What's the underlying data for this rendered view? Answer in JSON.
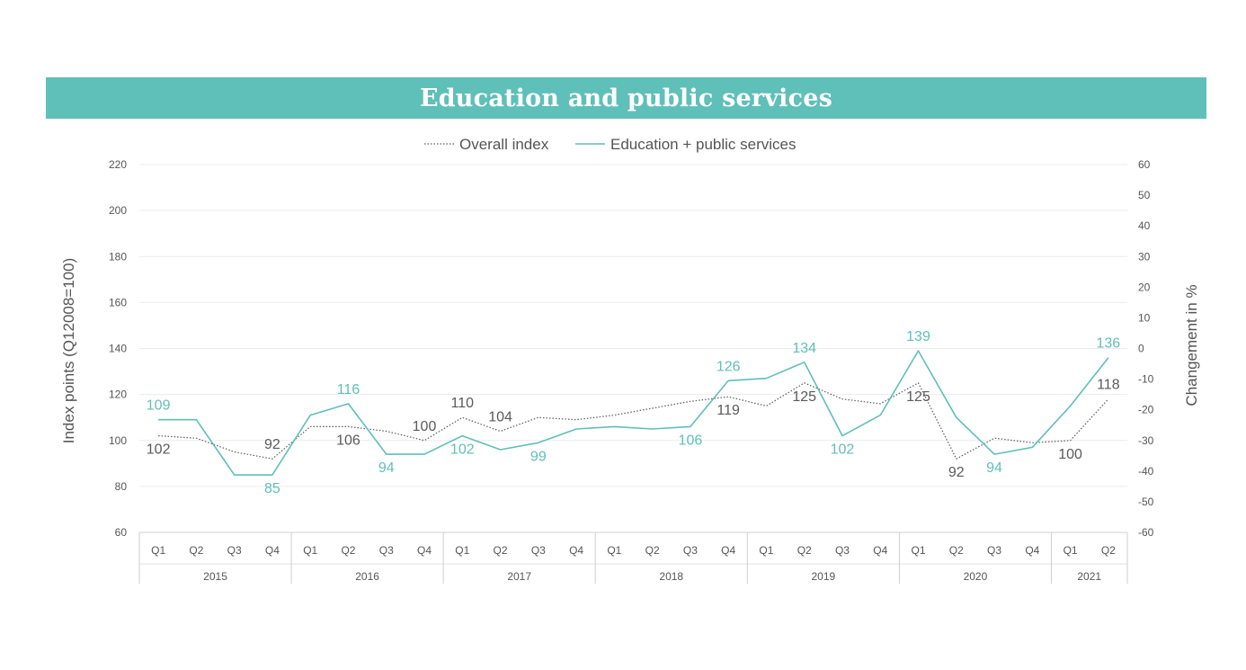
{
  "title": "Education and public services",
  "colors": {
    "banner": "#5fbfb9",
    "education": "#5fbfb9",
    "overall": "#5a5a5a",
    "axis_text": "#555555",
    "grid": "#ececec"
  },
  "chart_data": {
    "type": "line",
    "title": "Education and public services",
    "legend": {
      "placement": "top-center"
    },
    "ylabel": "Index points (Q12008=100)",
    "y2label": "Changement in %",
    "ylim": [
      60,
      220
    ],
    "yticks": [
      60,
      80,
      100,
      120,
      140,
      160,
      180,
      200,
      220
    ],
    "y2lim": [
      -60,
      60
    ],
    "y2ticks": [
      -60,
      -50,
      -40,
      -30,
      -20,
      -10,
      0,
      10,
      20,
      30,
      40,
      50,
      60
    ],
    "grid": true,
    "quarters": [
      "Q1",
      "Q2",
      "Q3",
      "Q4",
      "Q1",
      "Q2",
      "Q3",
      "Q4",
      "Q1",
      "Q2",
      "Q3",
      "Q4",
      "Q1",
      "Q2",
      "Q3",
      "Q4",
      "Q1",
      "Q2",
      "Q3",
      "Q4",
      "Q1",
      "Q2",
      "Q3",
      "Q4",
      "Q1",
      "Q2"
    ],
    "years": [
      {
        "label": "2015",
        "count": 4
      },
      {
        "label": "2016",
        "count": 4
      },
      {
        "label": "2017",
        "count": 4
      },
      {
        "label": "2018",
        "count": 4
      },
      {
        "label": "2019",
        "count": 4
      },
      {
        "label": "2020",
        "count": 4
      },
      {
        "label": "2021",
        "count": 2
      }
    ],
    "series": [
      {
        "name": "Overall index",
        "style": "dotted",
        "values": [
          102,
          101,
          95,
          92,
          106,
          106,
          104,
          100,
          110,
          104,
          110,
          109,
          111,
          114,
          117,
          119,
          115,
          125,
          118,
          116,
          125,
          92,
          101,
          99,
          100,
          118
        ],
        "labels": [
          {
            "i": 0,
            "text": "102",
            "pos": "below"
          },
          {
            "i": 3,
            "text": "92",
            "pos": "above"
          },
          {
            "i": 5,
            "text": "106",
            "pos": "below"
          },
          {
            "i": 7,
            "text": "100",
            "pos": "above"
          },
          {
            "i": 8,
            "text": "110",
            "pos": "above"
          },
          {
            "i": 9,
            "text": "104",
            "pos": "above"
          },
          {
            "i": 15,
            "text": "119",
            "pos": "below"
          },
          {
            "i": 17,
            "text": "125",
            "pos": "below"
          },
          {
            "i": 20,
            "text": "125",
            "pos": "below"
          },
          {
            "i": 21,
            "text": "92",
            "pos": "below"
          },
          {
            "i": 24,
            "text": "100",
            "pos": "below"
          },
          {
            "i": 25,
            "text": "118",
            "pos": "above"
          }
        ]
      },
      {
        "name": "Education + public services",
        "style": "solid",
        "values": [
          109,
          109,
          85,
          85,
          111,
          116,
          94,
          94,
          102,
          96,
          99,
          105,
          106,
          105,
          106,
          126,
          127,
          134,
          102,
          111,
          139,
          110,
          94,
          97,
          115,
          136
        ],
        "labels": [
          {
            "i": 0,
            "text": "109",
            "pos": "above"
          },
          {
            "i": 3,
            "text": "85",
            "pos": "below"
          },
          {
            "i": 5,
            "text": "116",
            "pos": "above"
          },
          {
            "i": 6,
            "text": "94",
            "pos": "below"
          },
          {
            "i": 8,
            "text": "102",
            "pos": "below"
          },
          {
            "i": 10,
            "text": "99",
            "pos": "below"
          },
          {
            "i": 14,
            "text": "106",
            "pos": "below"
          },
          {
            "i": 15,
            "text": "126",
            "pos": "above"
          },
          {
            "i": 17,
            "text": "134",
            "pos": "above"
          },
          {
            "i": 18,
            "text": "102",
            "pos": "below"
          },
          {
            "i": 20,
            "text": "139",
            "pos": "above"
          },
          {
            "i": 22,
            "text": "94",
            "pos": "below"
          },
          {
            "i": 25,
            "text": "136",
            "pos": "above"
          }
        ]
      }
    ]
  }
}
